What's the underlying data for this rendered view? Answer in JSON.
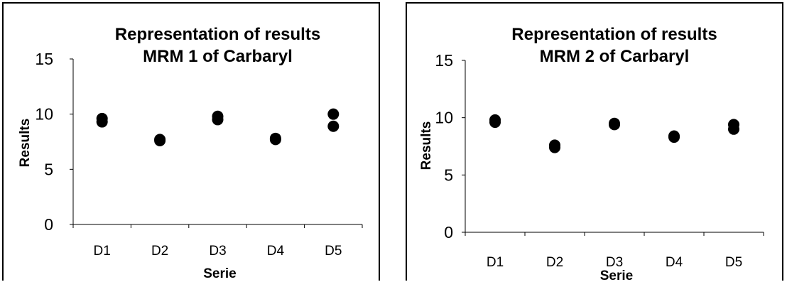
{
  "chart_data": [
    {
      "type": "scatter",
      "title": "Representation of results\nMRM 1 of Carbaryl",
      "title_lines": [
        "Representation of results",
        "MRM 1 of Carbaryl"
      ],
      "xlabel": "Serie",
      "ylabel": "Results",
      "categories": [
        "D1",
        "D2",
        "D3",
        "D4",
        "D5"
      ],
      "ylim": [
        0,
        15
      ],
      "yticks": [
        0,
        5,
        10,
        15
      ],
      "grid": false,
      "marker_color": "#000000",
      "points": [
        {
          "x": "D1",
          "y": 9.6
        },
        {
          "x": "D1",
          "y": 9.3
        },
        {
          "x": "D2",
          "y": 7.7
        },
        {
          "x": "D2",
          "y": 7.6
        },
        {
          "x": "D3",
          "y": 9.8
        },
        {
          "x": "D3",
          "y": 9.5
        },
        {
          "x": "D4",
          "y": 7.8
        },
        {
          "x": "D4",
          "y": 7.7
        },
        {
          "x": "D5",
          "y": 10.0
        },
        {
          "x": "D5",
          "y": 8.9
        }
      ]
    },
    {
      "type": "scatter",
      "title": "Representation of results\nMRM 2 of Carbaryl",
      "title_lines": [
        "Representation of results",
        "MRM 2 of Carbaryl"
      ],
      "xlabel": "Serie",
      "ylabel": "Results",
      "categories": [
        "D1",
        "D2",
        "D3",
        "D4",
        "D5"
      ],
      "ylim": [
        0,
        15
      ],
      "yticks": [
        0,
        5,
        10,
        15
      ],
      "grid": false,
      "marker_color": "#000000",
      "points": [
        {
          "x": "D1",
          "y": 9.8
        },
        {
          "x": "D1",
          "y": 9.6
        },
        {
          "x": "D2",
          "y": 7.6
        },
        {
          "x": "D2",
          "y": 7.4
        },
        {
          "x": "D3",
          "y": 9.5
        },
        {
          "x": "D3",
          "y": 9.4
        },
        {
          "x": "D4",
          "y": 8.4
        },
        {
          "x": "D4",
          "y": 8.3
        },
        {
          "x": "D5",
          "y": 9.4
        },
        {
          "x": "D5",
          "y": 9.0
        }
      ]
    }
  ]
}
